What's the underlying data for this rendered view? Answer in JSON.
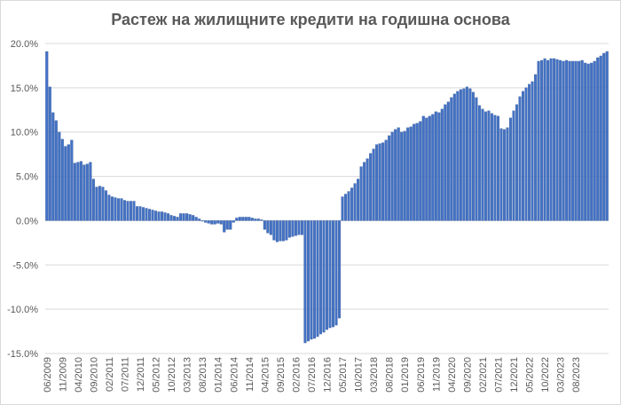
{
  "chart_data": {
    "type": "bar",
    "title": "Растеж на жилищните кредити на годишна основа",
    "xlabel": "",
    "ylabel": "",
    "ylim": [
      -15,
      20
    ],
    "grid": true,
    "legend": "none",
    "color": "#4472c4",
    "y_ticks": [
      "20.0%",
      "15.0%",
      "10.0%",
      "5.0%",
      "0.0%",
      "-5.0%",
      "-10.0%",
      "-15.0%"
    ],
    "x_tick_labels": [
      "06/2009",
      "11/2009",
      "04/2010",
      "09/2010",
      "02/2011",
      "07/2011",
      "12/2011",
      "05/2012",
      "10/2012",
      "03/2013",
      "08/2013",
      "01/2014",
      "06/2014",
      "11/2014",
      "04/2015",
      "09/2015",
      "02/2016",
      "07/2016",
      "12/2016",
      "05/2017",
      "10/2017",
      "03/2018",
      "08/2018",
      "01/2019",
      "06/2019",
      "11/2019",
      "04/2020",
      "09/2020",
      "02/2021",
      "07/2021",
      "12/2021",
      "05/2022",
      "10/2022",
      "03/2023",
      "08/2023"
    ],
    "start_month": "06/2009",
    "values": [
      19.1,
      15.1,
      12.2,
      11.3,
      10.0,
      9.2,
      8.4,
      8.6,
      9.1,
      6.5,
      6.6,
      6.7,
      6.3,
      6.4,
      6.6,
      4.7,
      3.8,
      3.9,
      3.8,
      3.4,
      2.9,
      2.7,
      2.6,
      2.5,
      2.5,
      2.3,
      2.2,
      2.2,
      2.2,
      1.6,
      1.6,
      1.5,
      1.4,
      1.3,
      1.2,
      1.1,
      1.0,
      1.0,
      0.9,
      0.8,
      0.6,
      0.5,
      0.4,
      0.8,
      0.8,
      0.8,
      0.7,
      0.6,
      0.4,
      0.2,
      0.0,
      -0.2,
      -0.3,
      -0.4,
      -0.4,
      -0.3,
      -0.4,
      -1.3,
      -1.0,
      -1.0,
      -0.2,
      0.3,
      0.4,
      0.4,
      0.4,
      0.4,
      0.3,
      0.2,
      0.2,
      0.1,
      -1.0,
      -1.4,
      -1.6,
      -2.2,
      -2.4,
      -2.3,
      -2.3,
      -2.2,
      -1.9,
      -1.8,
      -1.7,
      -1.6,
      -1.6,
      -13.8,
      -13.6,
      -13.4,
      -13.3,
      -13.1,
      -12.8,
      -12.6,
      -12.3,
      -12.1,
      -12.0,
      -11.8,
      -11.0,
      2.7,
      3.0,
      3.3,
      3.7,
      4.2,
      4.7,
      6.1,
      6.6,
      7.0,
      7.6,
      8.1,
      8.6,
      8.7,
      8.8,
      9.1,
      9.6,
      10.0,
      10.3,
      10.5,
      10.0,
      10.1,
      10.5,
      10.6,
      10.9,
      11.0,
      11.2,
      11.8,
      11.6,
      11.8,
      12.0,
      12.3,
      12.2,
      12.6,
      13.1,
      13.4,
      13.9,
      14.3,
      14.6,
      14.8,
      14.9,
      15.1,
      14.9,
      14.5,
      13.9,
      13.0,
      12.6,
      12.3,
      12.4,
      12.1,
      11.9,
      11.8,
      10.4,
      10.3,
      10.5,
      11.6,
      12.4,
      13.1,
      14.0,
      14.6,
      15.0,
      15.4,
      15.7,
      16.5,
      18.0,
      18.1,
      18.3,
      18.1,
      18.3,
      18.3,
      18.2,
      18.1,
      18.0,
      18.1,
      18.0,
      18.0,
      18.0,
      18.0,
      18.1,
      17.8,
      17.7,
      17.8,
      18.0,
      18.4,
      18.6,
      18.9,
      19.1
    ]
  }
}
